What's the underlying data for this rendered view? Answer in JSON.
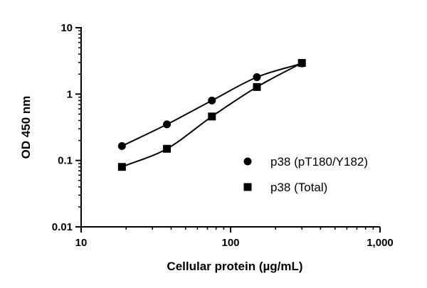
{
  "chart_data": {
    "type": "scatter",
    "xlabel": "Cellular protein (µg/mL)",
    "ylabel": "OD 450 nm",
    "x_scale": "log",
    "y_scale": "log",
    "xlim": [
      10,
      1000
    ],
    "ylim": [
      0.01,
      10
    ],
    "x_ticks": [
      {
        "value": 10,
        "label": "10"
      },
      {
        "value": 100,
        "label": "100"
      },
      {
        "value": 1000,
        "label": "1,000"
      }
    ],
    "y_ticks": [
      {
        "value": 0.01,
        "label": "0.01"
      },
      {
        "value": 0.1,
        "label": "0.1"
      },
      {
        "value": 1,
        "label": "1"
      },
      {
        "value": 10,
        "label": "10"
      }
    ],
    "legend_position": "right",
    "grid": false,
    "series": [
      {
        "name": "p38 (pT180/Y182)",
        "marker": "circle",
        "x": [
          18.75,
          37.5,
          75,
          150,
          300
        ],
        "y": [
          0.165,
          0.35,
          0.8,
          1.8,
          2.9
        ]
      },
      {
        "name": "p38 (Total)",
        "marker": "square",
        "x": [
          18.75,
          37.5,
          75,
          150,
          300
        ],
        "y": [
          0.08,
          0.15,
          0.46,
          1.28,
          2.95
        ]
      }
    ]
  }
}
